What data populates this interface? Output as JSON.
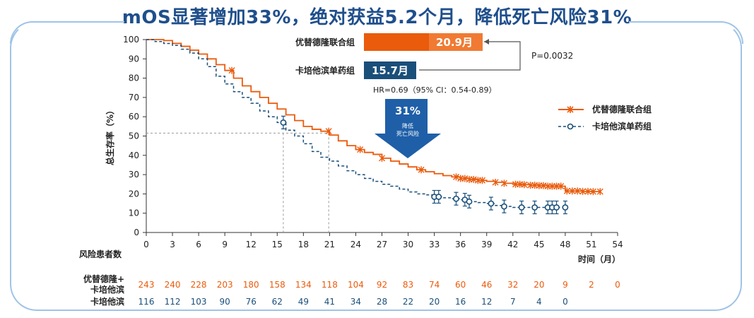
{
  "title": "mOS显著增加33%，绝对获益5.2个月，降低死亡风险31%",
  "colors": {
    "orange": "#ea5b0c",
    "blue": "#1a4f7a",
    "arrow": "#1f5fa8",
    "frame": "#9fc4e6"
  },
  "chart_data": {
    "type": "line",
    "subtype": "kaplan-meier",
    "ylabel": "总生存率（%）",
    "xlabel": "时间（月）",
    "xlim": [
      0,
      54
    ],
    "ylim": [
      0,
      100
    ],
    "x_ticks": [
      "0",
      "3",
      "6",
      "9",
      "12",
      "15",
      "18",
      "21",
      "24",
      "27",
      "30",
      "33",
      "36",
      "39",
      "42",
      "45",
      "48",
      "51",
      "54"
    ],
    "y_ticks": [
      "0",
      "10",
      "20",
      "30",
      "40",
      "50",
      "60",
      "70",
      "80",
      "90",
      "100"
    ],
    "median_line_y": 51.5,
    "medians": [
      {
        "series": "优替德隆联合组",
        "x": 20.9
      },
      {
        "series": "卡培他滨单药组",
        "x": 15.7
      }
    ],
    "series": [
      {
        "name": "优替德隆联合组",
        "legend": "优替德隆联合组",
        "x": [
          0,
          1,
          2,
          3,
          4,
          5,
          6,
          7,
          8,
          9,
          10,
          11,
          12,
          13,
          14,
          15,
          16,
          17,
          18,
          19,
          20,
          21,
          22,
          23,
          24,
          25,
          26,
          27,
          28,
          29,
          30,
          31,
          32,
          33,
          34,
          35,
          36,
          37,
          38,
          39,
          40,
          41,
          42,
          43,
          44,
          45,
          46,
          47,
          48,
          49,
          50,
          51,
          52
        ],
        "y": [
          100,
          100,
          99.5,
          98,
          96.5,
          94.5,
          92.5,
          90,
          87,
          84,
          80,
          76,
          73,
          70,
          67,
          64,
          61,
          58,
          55,
          53.5,
          52.5,
          50.5,
          47.5,
          45,
          43,
          41.5,
          40.5,
          38.5,
          37,
          35.5,
          34,
          32.5,
          31.5,
          30.5,
          29.5,
          28.8,
          28,
          27.5,
          27,
          26.5,
          26,
          25.5,
          25,
          24.8,
          24.5,
          24.3,
          24,
          24,
          21.5,
          21.5,
          21.3,
          21.2,
          21.2
        ],
        "censor_x": [
          9.8,
          20.9,
          24.5,
          27,
          31.5,
          35.5,
          36,
          36.5,
          37,
          37.5,
          38,
          38.5,
          40,
          41,
          42.3,
          42.8,
          43.3,
          44,
          44.5,
          45,
          45.5,
          46,
          46.5,
          47,
          47.5,
          48.2,
          48.8,
          49.4,
          50,
          50.6,
          51.2,
          52
        ],
        "median_label": "20.9月"
      },
      {
        "name": "卡培他滨单药组",
        "legend": "卡培他滨单药组",
        "x": [
          0,
          1,
          2,
          3,
          4,
          5,
          6,
          7,
          8,
          9,
          10,
          11,
          12,
          13,
          14,
          15,
          16,
          17,
          18,
          19,
          20,
          21,
          22,
          23,
          24,
          25,
          26,
          27,
          28,
          29,
          30,
          31,
          32,
          33,
          34,
          35,
          36,
          37,
          38,
          39,
          40,
          41,
          42,
          43,
          44,
          45,
          46,
          47,
          48
        ],
        "y": [
          100,
          99,
          98,
          97,
          95,
          93,
          90,
          86,
          81,
          77,
          73,
          70,
          67,
          63,
          60,
          57,
          53,
          50,
          46,
          42,
          39,
          37,
          34.5,
          32,
          30,
          28,
          26.5,
          25,
          24,
          22.5,
          21,
          20,
          19.5,
          18.5,
          18,
          17.5,
          17,
          16,
          15.5,
          15,
          14,
          13.5,
          13,
          13,
          13,
          13,
          13,
          13,
          13
        ],
        "censor_x": [
          15.7,
          33,
          33.5,
          35.5,
          36.5,
          37,
          39.5,
          41,
          43,
          44.5,
          46,
          46.5,
          47,
          48
        ],
        "median_label": "15.7月"
      }
    ],
    "annotations": {
      "combo_group_label": "优替德隆联合组",
      "mono_group_label": "卡培他滨单药组",
      "combo_median": "20.9月",
      "mono_median": "15.7月",
      "combo_median_value": 20.9,
      "mono_median_value": 15.7,
      "p_value": "P=0.0032",
      "hr": "HR=0.69（95% CI：0.54-0.89）",
      "arrow_pct": "31%",
      "arrow_text_1": "降低",
      "arrow_text_2": "死亡风险"
    },
    "risk_table": {
      "header": "风险患者数",
      "rows": [
        {
          "label_1": "优替德隆+",
          "label_2": "卡培他滨",
          "values": [
            "243",
            "240",
            "228",
            "203",
            "180",
            "158",
            "134",
            "118",
            "104",
            "92",
            "83",
            "74",
            "60",
            "46",
            "32",
            "20",
            "9",
            "2",
            "0"
          ]
        },
        {
          "label_1": "卡培他滨",
          "label_2": "",
          "values": [
            "116",
            "112",
            "103",
            "90",
            "76",
            "62",
            "49",
            "41",
            "34",
            "28",
            "22",
            "20",
            "16",
            "12",
            "7",
            "4",
            "0"
          ]
        }
      ]
    }
  }
}
